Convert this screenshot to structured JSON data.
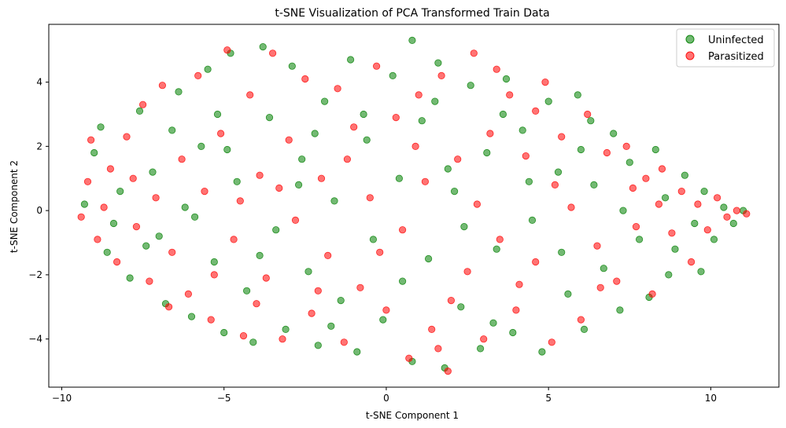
{
  "chart_data": {
    "type": "scatter",
    "title": "t-SNE Visualization of PCA Transformed Train Data",
    "xlabel": "t-SNE Component 1",
    "ylabel": "t-SNE Component 2",
    "xlim": [
      -10.4,
      12.1
    ],
    "ylim": [
      -5.5,
      5.8
    ],
    "xticks": [
      -10,
      -5,
      0,
      5,
      10
    ],
    "yticks": [
      -4,
      -2,
      0,
      2,
      4
    ],
    "xtick_labels": [
      "−10",
      "−5",
      "0",
      "5",
      "10"
    ],
    "ytick_labels": [
      "−4",
      "−2",
      "0",
      "2",
      "4"
    ],
    "grid": false,
    "legend_position": "top-right",
    "point_alpha": 0.55,
    "series": [
      {
        "name": "Uninfected",
        "color": "#008000",
        "points": [
          [
            -9.0,
            1.8
          ],
          [
            -8.8,
            2.6
          ],
          [
            -8.6,
            -1.3
          ],
          [
            -8.2,
            0.6
          ],
          [
            -7.9,
            -2.1
          ],
          [
            -7.6,
            3.1
          ],
          [
            -7.2,
            1.2
          ],
          [
            -7.0,
            -0.8
          ],
          [
            -6.8,
            -2.9
          ],
          [
            -6.4,
            3.7
          ],
          [
            -6.2,
            0.1
          ],
          [
            -6.0,
            -3.3
          ],
          [
            -5.7,
            2.0
          ],
          [
            -5.5,
            4.4
          ],
          [
            -5.3,
            -1.6
          ],
          [
            -5.0,
            -3.8
          ],
          [
            -4.8,
            4.9
          ],
          [
            -4.6,
            0.9
          ],
          [
            -4.3,
            -2.5
          ],
          [
            -4.1,
            -4.1
          ],
          [
            -3.8,
            5.1
          ],
          [
            -3.6,
            2.9
          ],
          [
            -3.4,
            -0.6
          ],
          [
            -3.1,
            -3.7
          ],
          [
            -2.9,
            4.5
          ],
          [
            -2.6,
            1.6
          ],
          [
            -2.4,
            -1.9
          ],
          [
            -2.1,
            -4.2
          ],
          [
            -1.9,
            3.4
          ],
          [
            -1.6,
            0.3
          ],
          [
            -1.4,
            -2.8
          ],
          [
            -1.1,
            4.7
          ],
          [
            -0.9,
            -4.4
          ],
          [
            -0.6,
            2.2
          ],
          [
            -0.4,
            -0.9
          ],
          [
            -0.1,
            -3.4
          ],
          [
            0.2,
            4.2
          ],
          [
            0.4,
            1.0
          ],
          [
            0.8,
            5.3
          ],
          [
            0.8,
            -4.7
          ],
          [
            1.1,
            2.8
          ],
          [
            1.3,
            -1.5
          ],
          [
            1.6,
            4.6
          ],
          [
            1.8,
            -4.9
          ],
          [
            2.1,
            0.6
          ],
          [
            2.3,
            -3.0
          ],
          [
            2.6,
            3.9
          ],
          [
            2.9,
            -4.3
          ],
          [
            3.1,
            1.8
          ],
          [
            3.4,
            -1.2
          ],
          [
            3.7,
            4.1
          ],
          [
            3.9,
            -3.8
          ],
          [
            4.2,
            2.5
          ],
          [
            4.5,
            -0.3
          ],
          [
            4.8,
            -4.4
          ],
          [
            5.0,
            3.4
          ],
          [
            5.3,
            1.2
          ],
          [
            5.6,
            -2.6
          ],
          [
            5.9,
            3.6
          ],
          [
            6.1,
            -3.7
          ],
          [
            6.4,
            0.8
          ],
          [
            6.7,
            -1.8
          ],
          [
            7.0,
            2.4
          ],
          [
            7.2,
            -3.1
          ],
          [
            7.5,
            1.5
          ],
          [
            7.8,
            -0.9
          ],
          [
            8.1,
            -2.7
          ],
          [
            8.3,
            1.9
          ],
          [
            8.6,
            0.4
          ],
          [
            8.9,
            -1.2
          ],
          [
            9.2,
            1.1
          ],
          [
            9.5,
            -0.4
          ],
          [
            9.8,
            0.6
          ],
          [
            10.1,
            -0.9
          ],
          [
            10.4,
            0.1
          ],
          [
            10.7,
            -0.4
          ],
          [
            11.0,
            0.0
          ],
          [
            -9.3,
            0.2
          ],
          [
            -8.4,
            -0.4
          ],
          [
            -7.4,
            -1.1
          ],
          [
            -6.6,
            2.5
          ],
          [
            -5.9,
            -0.2
          ],
          [
            -4.9,
            1.9
          ],
          [
            -3.9,
            -1.4
          ],
          [
            -2.7,
            0.8
          ],
          [
            -1.7,
            -3.6
          ],
          [
            -0.7,
            3.0
          ],
          [
            0.5,
            -2.2
          ],
          [
            1.5,
            3.4
          ],
          [
            2.4,
            -0.5
          ],
          [
            3.3,
            -3.5
          ],
          [
            4.4,
            0.9
          ],
          [
            5.4,
            -1.3
          ],
          [
            6.3,
            2.8
          ],
          [
            7.3,
            0.0
          ],
          [
            8.7,
            -2.0
          ],
          [
            9.7,
            -1.9
          ],
          [
            -5.2,
            3.0
          ],
          [
            -2.2,
            2.4
          ],
          [
            1.9,
            1.3
          ],
          [
            3.6,
            3.0
          ],
          [
            6.0,
            1.9
          ]
        ]
      },
      {
        "name": "Parasitized",
        "color": "#ff0000",
        "points": [
          [
            -9.4,
            -0.2
          ],
          [
            -9.1,
            2.2
          ],
          [
            -8.9,
            -0.9
          ],
          [
            -8.5,
            1.3
          ],
          [
            -8.3,
            -1.6
          ],
          [
            -8.0,
            2.3
          ],
          [
            -7.7,
            -0.5
          ],
          [
            -7.5,
            3.3
          ],
          [
            -7.3,
            -2.2
          ],
          [
            -7.1,
            0.4
          ],
          [
            -6.9,
            3.9
          ],
          [
            -6.6,
            -1.3
          ],
          [
            -6.3,
            1.6
          ],
          [
            -6.1,
            -2.6
          ],
          [
            -5.8,
            4.2
          ],
          [
            -5.6,
            0.6
          ],
          [
            -5.4,
            -3.4
          ],
          [
            -5.1,
            2.4
          ],
          [
            -4.9,
            5.0
          ],
          [
            -4.7,
            -0.9
          ],
          [
            -4.4,
            -3.9
          ],
          [
            -4.2,
            3.6
          ],
          [
            -3.9,
            1.1
          ],
          [
            -3.7,
            -2.1
          ],
          [
            -3.5,
            4.9
          ],
          [
            -3.2,
            -4.0
          ],
          [
            -3.0,
            2.2
          ],
          [
            -2.8,
            -0.3
          ],
          [
            -2.5,
            4.1
          ],
          [
            -2.3,
            -3.2
          ],
          [
            -2.0,
            1.0
          ],
          [
            -1.8,
            -1.4
          ],
          [
            -1.5,
            3.8
          ],
          [
            -1.3,
            -4.1
          ],
          [
            -1.0,
            2.6
          ],
          [
            -0.8,
            -2.4
          ],
          [
            -0.5,
            0.4
          ],
          [
            -0.3,
            4.5
          ],
          [
            0.0,
            -3.1
          ],
          [
            0.3,
            2.9
          ],
          [
            0.5,
            -0.6
          ],
          [
            0.7,
            -4.6
          ],
          [
            1.0,
            3.6
          ],
          [
            1.2,
            0.9
          ],
          [
            1.4,
            -3.7
          ],
          [
            1.7,
            4.2
          ],
          [
            1.9,
            -5.0
          ],
          [
            2.2,
            1.6
          ],
          [
            2.5,
            -1.9
          ],
          [
            2.7,
            4.9
          ],
          [
            3.0,
            -4.0
          ],
          [
            3.2,
            2.4
          ],
          [
            3.5,
            -0.9
          ],
          [
            3.8,
            3.6
          ],
          [
            4.0,
            -3.1
          ],
          [
            4.3,
            1.7
          ],
          [
            4.6,
            -1.6
          ],
          [
            4.9,
            4.0
          ],
          [
            5.1,
            -4.1
          ],
          [
            5.4,
            2.3
          ],
          [
            5.7,
            0.1
          ],
          [
            6.0,
            -3.4
          ],
          [
            6.2,
            3.0
          ],
          [
            6.5,
            -1.1
          ],
          [
            6.8,
            1.8
          ],
          [
            7.1,
            -2.2
          ],
          [
            7.4,
            2.0
          ],
          [
            7.7,
            -0.5
          ],
          [
            8.0,
            1.0
          ],
          [
            8.2,
            -2.6
          ],
          [
            8.5,
            1.3
          ],
          [
            8.8,
            -0.7
          ],
          [
            9.1,
            0.6
          ],
          [
            9.4,
            -1.6
          ],
          [
            9.6,
            0.2
          ],
          [
            9.9,
            -0.6
          ],
          [
            10.2,
            0.4
          ],
          [
            10.5,
            -0.2
          ],
          [
            10.8,
            0.0
          ],
          [
            11.1,
            -0.1
          ],
          [
            -9.2,
            0.9
          ],
          [
            -8.7,
            0.1
          ],
          [
            -7.8,
            1.0
          ],
          [
            -6.7,
            -3.0
          ],
          [
            -5.3,
            -2.0
          ],
          [
            -4.5,
            0.3
          ],
          [
            -3.3,
            0.7
          ],
          [
            -2.1,
            -2.5
          ],
          [
            -1.2,
            1.6
          ],
          [
            -0.2,
            -1.3
          ],
          [
            0.9,
            2.0
          ],
          [
            2.0,
            -2.8
          ],
          [
            2.8,
            0.2
          ],
          [
            4.1,
            -2.3
          ],
          [
            5.2,
            0.8
          ],
          [
            6.6,
            -2.4
          ],
          [
            7.6,
            0.7
          ],
          [
            8.4,
            0.2
          ],
          [
            -4.0,
            -2.9
          ],
          [
            1.6,
            -4.3
          ],
          [
            3.4,
            4.4
          ],
          [
            4.6,
            3.1
          ]
        ]
      }
    ]
  }
}
